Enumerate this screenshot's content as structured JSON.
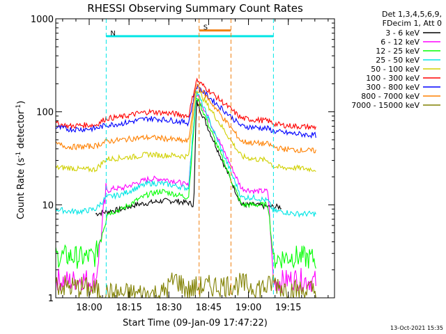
{
  "chart_data": {
    "type": "line",
    "title": "RHESSI Observing Summary Count Rates",
    "xlabel": "Start Time (09-Jan-09 17:47:22)",
    "ylabel": "Count Rate (s",
    "ylabel_sup": "-1",
    "ylabel_tail": " detector",
    "ylabel_tail_sup": "-1",
    "ylabel_close": ")",
    "yscale": "log",
    "ylim": [
      1,
      1000
    ],
    "y_ticks": [
      1,
      10,
      100,
      1000
    ],
    "y_tick_labels": [
      "1",
      "10",
      "100",
      "1000"
    ],
    "xlim_minutes_from_start": [
      0,
      105
    ],
    "x_ticks_minutes": [
      12.6,
      27.6,
      42.6,
      57.6,
      72.6,
      87.6
    ],
    "x_tick_labels": [
      "18:00",
      "18:15",
      "18:30",
      "18:45",
      "19:00",
      "19:15"
    ],
    "legend_position": "top-right",
    "legend_header": [
      "Det 1,3,4,5,6,9,",
      "FDecim 1, Att 0"
    ],
    "annotation_date": "13-Oct-2021 15:35",
    "flags": [
      {
        "label": "N",
        "color": "#00e5e5",
        "start": 19,
        "end": 82,
        "level": 650
      },
      {
        "label": "S",
        "color": "#f07f10",
        "start": 54,
        "end": 66,
        "level": 750
      }
    ],
    "series": [
      {
        "name": "3 - 6 keV",
        "color": "#000000",
        "points": [
          [
            15,
            8
          ],
          [
            20,
            8.5
          ],
          [
            25,
            9
          ],
          [
            30,
            10
          ],
          [
            35,
            10.5
          ],
          [
            40,
            11
          ],
          [
            45,
            11
          ],
          [
            50,
            10.5
          ],
          [
            52,
            10
          ],
          [
            53,
            130
          ],
          [
            70,
            10
          ],
          [
            75,
            10
          ],
          [
            80,
            9.5
          ],
          [
            85,
            9.5
          ]
        ]
      },
      {
        "name": "6 - 12 keV",
        "color": "#ff00ff",
        "points": [
          [
            0,
            1.6
          ],
          [
            5,
            1.5
          ],
          [
            10,
            1.6
          ],
          [
            15,
            1.5
          ],
          [
            19,
            14
          ],
          [
            22,
            15
          ],
          [
            25,
            15
          ],
          [
            30,
            17
          ],
          [
            35,
            19
          ],
          [
            40,
            19
          ],
          [
            45,
            18
          ],
          [
            50,
            16
          ],
          [
            53,
            160
          ],
          [
            70,
            15
          ],
          [
            75,
            14
          ],
          [
            80,
            14
          ],
          [
            82,
            1.5
          ],
          [
            85,
            1.5
          ],
          [
            90,
            1.6
          ],
          [
            98,
            1.5
          ]
        ]
      },
      {
        "name": "12 - 25 keV",
        "color": "#00ff00",
        "points": [
          [
            0,
            2.8
          ],
          [
            5,
            2.8
          ],
          [
            10,
            2.7
          ],
          [
            15,
            2.8
          ],
          [
            19,
            8
          ],
          [
            25,
            9
          ],
          [
            30,
            11
          ],
          [
            35,
            13
          ],
          [
            40,
            14
          ],
          [
            45,
            13
          ],
          [
            50,
            12
          ],
          [
            53,
            150
          ],
          [
            70,
            10
          ],
          [
            75,
            10
          ],
          [
            80,
            10
          ],
          [
            82,
            2.6
          ],
          [
            85,
            2.7
          ],
          [
            90,
            2.8
          ],
          [
            98,
            2.6
          ]
        ]
      },
      {
        "name": "25 - 50 keV",
        "color": "#00e5e5",
        "points": [
          [
            0,
            9
          ],
          [
            5,
            8.5
          ],
          [
            10,
            8.5
          ],
          [
            15,
            9
          ],
          [
            19,
            12
          ],
          [
            25,
            13
          ],
          [
            30,
            15
          ],
          [
            35,
            17
          ],
          [
            40,
            17
          ],
          [
            45,
            16
          ],
          [
            50,
            15
          ],
          [
            53,
            170
          ],
          [
            70,
            12
          ],
          [
            75,
            12
          ],
          [
            80,
            11
          ],
          [
            82,
            8.5
          ],
          [
            85,
            8.5
          ],
          [
            90,
            8
          ],
          [
            98,
            8
          ]
        ]
      },
      {
        "name": "50 - 100 keV",
        "color": "#d0d000",
        "points": [
          [
            0,
            25
          ],
          [
            5,
            25
          ],
          [
            10,
            24
          ],
          [
            15,
            24
          ],
          [
            19,
            31
          ],
          [
            25,
            32
          ],
          [
            30,
            33
          ],
          [
            35,
            35
          ],
          [
            40,
            34
          ],
          [
            45,
            34
          ],
          [
            50,
            33
          ],
          [
            53,
            180
          ],
          [
            70,
            33
          ],
          [
            75,
            31
          ],
          [
            80,
            30
          ],
          [
            82,
            26
          ],
          [
            85,
            25
          ],
          [
            90,
            25
          ],
          [
            98,
            24
          ]
        ]
      },
      {
        "name": "100 - 300 keV",
        "color": "#ff0000",
        "points": [
          [
            0,
            75
          ],
          [
            5,
            70
          ],
          [
            10,
            72
          ],
          [
            15,
            72
          ],
          [
            19,
            85
          ],
          [
            25,
            88
          ],
          [
            30,
            95
          ],
          [
            35,
            100
          ],
          [
            40,
            98
          ],
          [
            45,
            95
          ],
          [
            50,
            90
          ],
          [
            53,
            220
          ],
          [
            70,
            85
          ],
          [
            75,
            82
          ],
          [
            80,
            80
          ],
          [
            82,
            75
          ],
          [
            85,
            72
          ],
          [
            90,
            70
          ],
          [
            98,
            68
          ]
        ]
      },
      {
        "name": "300 - 800 keV",
        "color": "#0000ff",
        "points": [
          [
            0,
            68
          ],
          [
            5,
            65
          ],
          [
            10,
            65
          ],
          [
            15,
            66
          ],
          [
            19,
            72
          ],
          [
            25,
            75
          ],
          [
            30,
            80
          ],
          [
            35,
            85
          ],
          [
            40,
            83
          ],
          [
            45,
            80
          ],
          [
            50,
            76
          ],
          [
            53,
            190
          ],
          [
            70,
            70
          ],
          [
            75,
            68
          ],
          [
            80,
            66
          ],
          [
            82,
            62
          ],
          [
            85,
            60
          ],
          [
            90,
            58
          ],
          [
            98,
            56
          ]
        ]
      },
      {
        "name": "800 - 7000 keV",
        "color": "#ff8000",
        "points": [
          [
            0,
            45
          ],
          [
            5,
            42
          ],
          [
            10,
            42
          ],
          [
            15,
            43
          ],
          [
            19,
            48
          ],
          [
            25,
            50
          ],
          [
            30,
            52
          ],
          [
            35,
            53
          ],
          [
            40,
            52
          ],
          [
            45,
            50
          ],
          [
            50,
            48
          ],
          [
            53,
            200
          ],
          [
            70,
            48
          ],
          [
            75,
            46
          ],
          [
            80,
            45
          ],
          [
            82,
            42
          ],
          [
            85,
            40
          ],
          [
            90,
            39
          ],
          [
            98,
            38
          ]
        ]
      },
      {
        "name": "7000 - 15000 keV",
        "color": "#808000",
        "points": [
          [
            0,
            1.4
          ],
          [
            5,
            1.3
          ],
          [
            10,
            1.3
          ],
          [
            15,
            1.2
          ],
          [
            19,
            1.1
          ],
          [
            25,
            1.1
          ],
          [
            30,
            1.1
          ],
          [
            35,
            1.1
          ],
          [
            40,
            1.1
          ],
          [
            45,
            1.6
          ],
          [
            50,
            1.2
          ],
          [
            53,
            1.3
          ],
          [
            70,
            1.4
          ],
          [
            75,
            1.3
          ],
          [
            80,
            1.3
          ],
          [
            82,
            1.5
          ],
          [
            85,
            1.3
          ],
          [
            90,
            1.2
          ],
          [
            98,
            1.2
          ]
        ]
      }
    ]
  }
}
